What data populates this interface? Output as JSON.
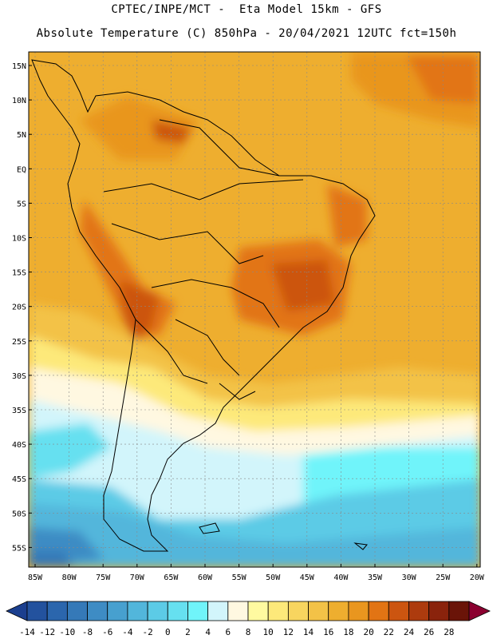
{
  "header": {
    "title_line1": "CPTEC/INPE/MCT -  Eta Model 15km - GFS",
    "title_line2": "Absolute Temperature (C) 850hPa - 20/04/2021 12UTC fct=150h"
  },
  "map": {
    "lat_labels": [
      "15N",
      "10N",
      "5N",
      "EQ",
      "5S",
      "10S",
      "15S",
      "20S",
      "25S",
      "30S",
      "35S",
      "40S",
      "45S",
      "50S",
      "55S"
    ],
    "lon_labels": [
      "85W",
      "80W",
      "75W",
      "70W",
      "65W",
      "60W",
      "55W",
      "50W",
      "45W",
      "40W",
      "35W",
      "30W",
      "25W",
      "20W"
    ]
  },
  "colorbar": {
    "ticks": [
      "-14",
      "-12",
      "-10",
      "-8",
      "-6",
      "-4",
      "-2",
      "0",
      "2",
      "4",
      "6",
      "8",
      "10",
      "12",
      "14",
      "16",
      "18",
      "20",
      "22",
      "24",
      "26",
      "28"
    ],
    "colors": [
      "#1b3f8f",
      "#23529e",
      "#2b66ad",
      "#3579b8",
      "#3e8cc4",
      "#47a0cf",
      "#52b6db",
      "#5ccbe6",
      "#66e0f0",
      "#70f4fa",
      "#d2f5fb",
      "#fff8e1",
      "#fffaa0",
      "#fde97a",
      "#f8d55f",
      "#f3c247",
      "#eeae2f",
      "#e9961f",
      "#e27414",
      "#cc5510",
      "#ad3b0e",
      "#8a230c",
      "#6a1408",
      "#8b0030"
    ]
  }
}
